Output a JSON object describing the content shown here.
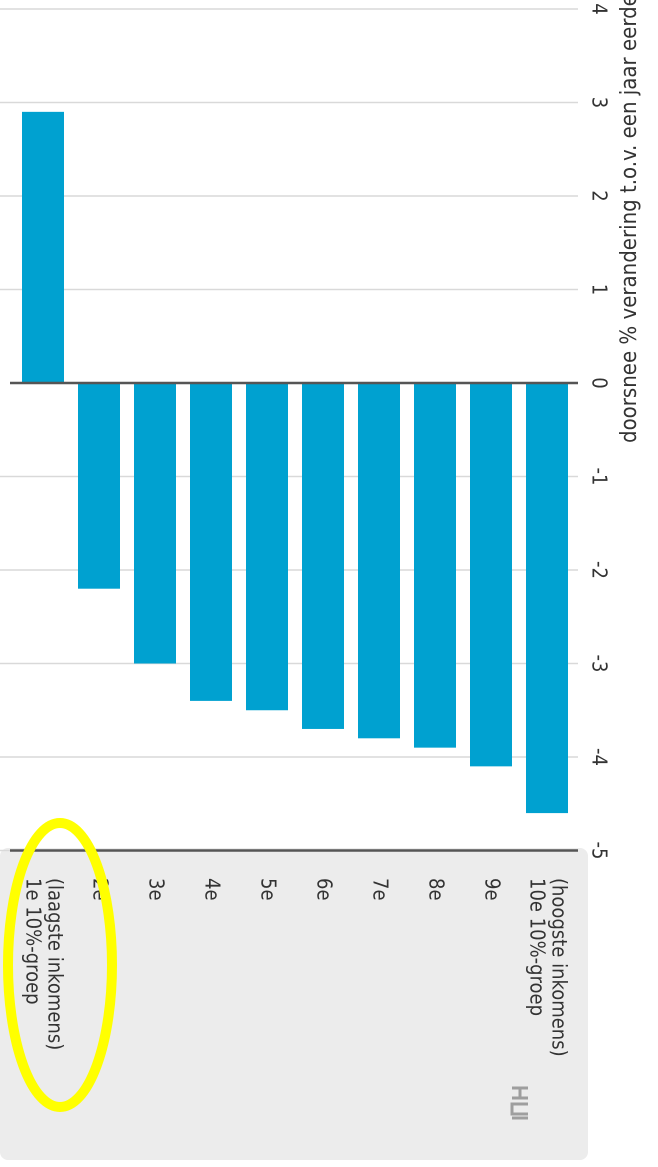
{
  "chart_data": {
    "type": "bar",
    "orientation": "horizontal",
    "rotated": "90deg clockwise",
    "categories": [
      "1e 10%-groep\n(laagste inkomens)",
      "2e",
      "3e",
      "4e",
      "5e",
      "6e",
      "7e",
      "8e",
      "9e",
      "10e 10%-groep\n(hoogste inkomens)"
    ],
    "values": [
      2.9,
      -2.2,
      -3.0,
      -3.4,
      -3.5,
      -3.7,
      -3.8,
      -3.9,
      -4.1,
      -4.6
    ],
    "xlabel": "doorsnee % verandering t.o.v. een jaar eerder",
    "ylabel": "",
    "xlim": [
      -5,
      4
    ],
    "ticks": [
      "-5",
      "-4",
      "-3",
      "-2",
      "-1",
      "0",
      "1",
      "2",
      "3",
      "4"
    ],
    "bar_color": "#00a1d0",
    "grid": true,
    "annotations": [
      {
        "type": "ellipse",
        "color": "#ffff00",
        "target": "1e 10%-groep\n(laagste inkomens)"
      }
    ]
  },
  "logo": {
    "icon": "cbs-logo-icon",
    "color": "#9e9e9e"
  }
}
